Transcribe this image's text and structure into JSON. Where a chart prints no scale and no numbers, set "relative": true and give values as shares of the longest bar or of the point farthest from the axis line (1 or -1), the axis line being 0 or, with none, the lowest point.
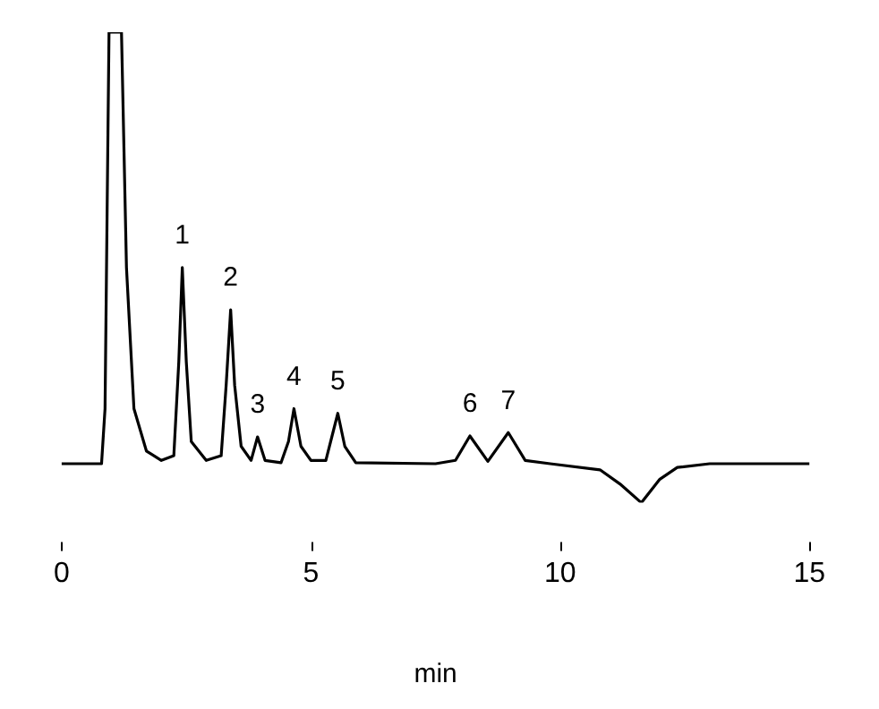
{
  "chart_data": {
    "type": "line",
    "relative": true,
    "xlabel": "min",
    "xlim": [
      0,
      15
    ],
    "xticks": [
      0,
      5,
      10,
      15
    ],
    "grid": false,
    "legend": false,
    "marker": "none",
    "line_style": "solid",
    "series": [
      {
        "color": "#000000",
        "x": [
          0,
          0.8,
          0.87,
          0.95,
          1.2,
          1.3,
          1.45,
          1.7,
          2.0,
          2.25,
          2.35,
          2.42,
          2.5,
          2.6,
          2.9,
          3.2,
          3.3,
          3.39,
          3.47,
          3.6,
          3.8,
          3.93,
          4.08,
          4.4,
          4.55,
          4.66,
          4.8,
          5.0,
          5.3,
          5.42,
          5.54,
          5.68,
          5.9,
          7.5,
          7.9,
          8.19,
          8.55,
          8.96,
          9.3,
          9.8,
          10.8,
          11.2,
          11.63,
          12.0,
          12.35,
          13.0,
          15
        ],
        "values": [
          0.083,
          0.083,
          0.2,
          1,
          1,
          0.5,
          0.2,
          0.11,
          0.09,
          0.1,
          0.3,
          0.5,
          0.3,
          0.13,
          0.09,
          0.1,
          0.25,
          0.41,
          0.25,
          0.12,
          0.09,
          0.14,
          0.09,
          0.085,
          0.13,
          0.2,
          0.12,
          0.09,
          0.09,
          0.14,
          0.19,
          0.12,
          0.085,
          0.083,
          0.09,
          0.142,
          0.088,
          0.149,
          0.09,
          0.083,
          0.07,
          0.04,
          0,
          0.05,
          0.075,
          0.083,
          0.083
        ]
      }
    ],
    "annotations": [
      {
        "text": "1",
        "x": 2.42,
        "y": 0.5
      },
      {
        "text": "2",
        "x": 3.39,
        "y": 0.41
      },
      {
        "text": "3",
        "x": 3.93,
        "y": 0.14
      },
      {
        "text": "4",
        "x": 4.66,
        "y": 0.2
      },
      {
        "text": "5",
        "x": 5.54,
        "y": 0.19
      },
      {
        "text": "6",
        "x": 8.19,
        "y": 0.142
      },
      {
        "text": "7",
        "x": 8.96,
        "y": 0.149
      }
    ]
  }
}
